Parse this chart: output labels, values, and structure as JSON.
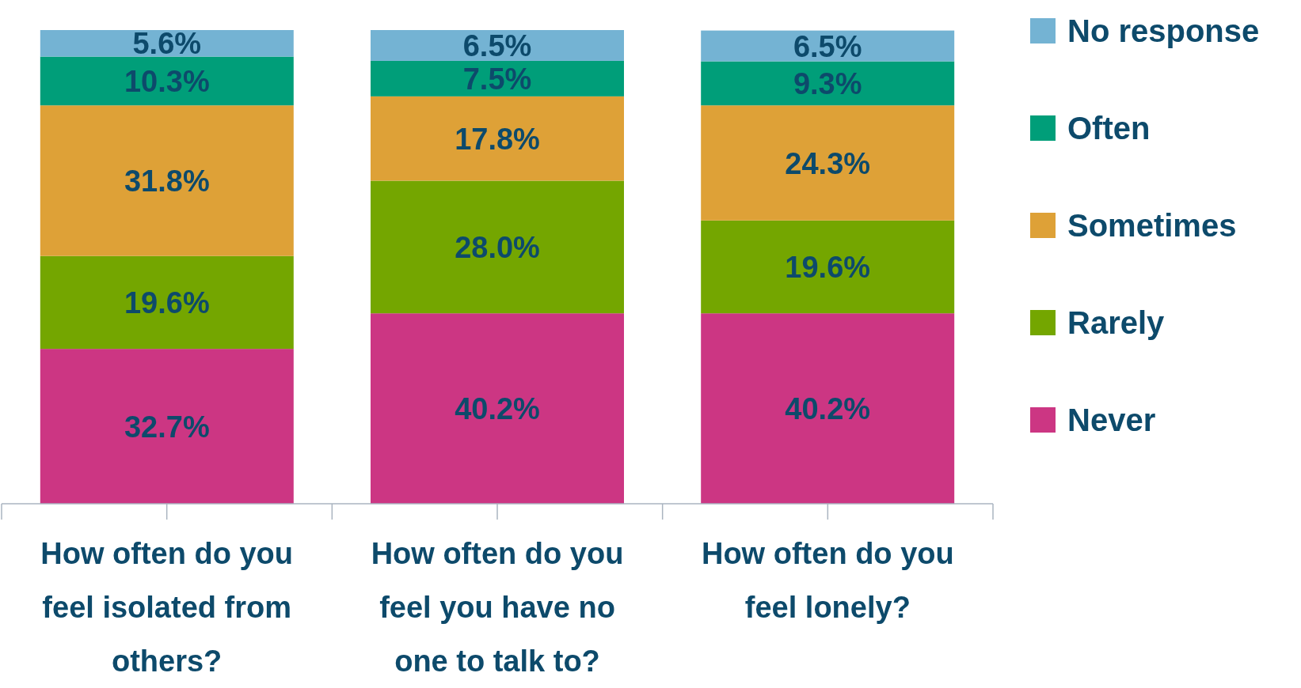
{
  "chart_data": {
    "type": "bar",
    "stacked": true,
    "legend": "right",
    "categories": [
      "How often do you feel isolated from others?",
      "How often do you feel you have no one to talk to?",
      "How often do you feel lonely?"
    ],
    "series": [
      {
        "name": "Never",
        "color": "#cc3683",
        "values": [
          32.7,
          40.2,
          40.2
        ],
        "value_labels": [
          "32.7%",
          "40.2%",
          "40.2%"
        ]
      },
      {
        "name": "Rarely",
        "color": "#74a600",
        "values": [
          19.6,
          28.0,
          19.6
        ],
        "value_labels": [
          "19.6%",
          "28.0%",
          "19.6%"
        ]
      },
      {
        "name": "Sometimes",
        "color": "#dea137",
        "values": [
          31.8,
          17.8,
          24.3
        ],
        "value_labels": [
          "31.8%",
          "17.8%",
          "24.3%"
        ]
      },
      {
        "name": "Often",
        "color": "#009e79",
        "values": [
          10.3,
          7.5,
          9.3
        ],
        "value_labels": [
          "10.3%",
          "7.5%",
          "9.3%"
        ]
      },
      {
        "name": "No response",
        "color": "#74b3d3",
        "values": [
          5.6,
          6.5,
          6.5
        ],
        "value_labels": [
          "5.6%",
          "6.5%",
          "6.5%"
        ]
      }
    ]
  }
}
